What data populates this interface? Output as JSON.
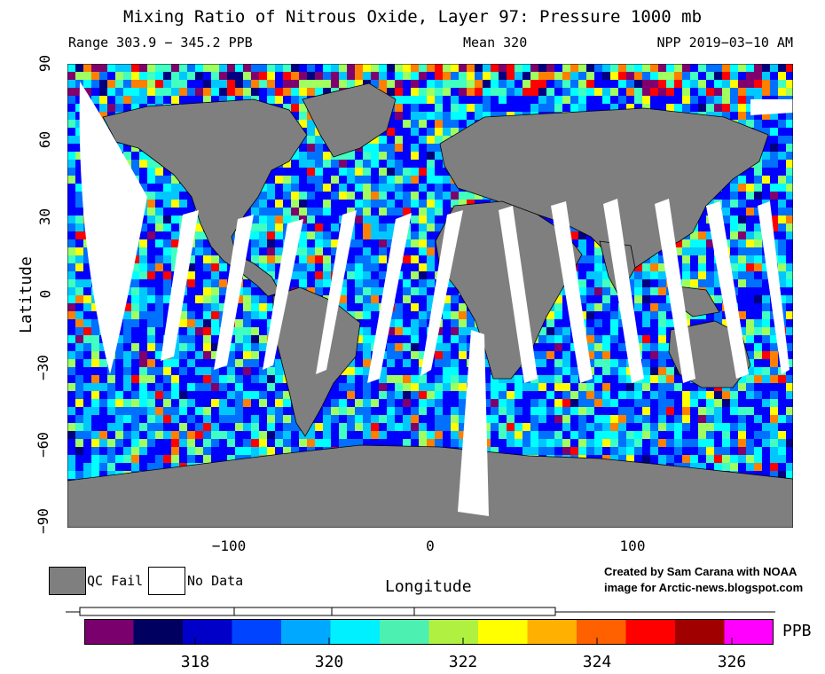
{
  "header": {
    "title": "Mixing Ratio of Nitrous Oxide, Layer 97: Pressure 1000 mb",
    "range": "Range 303.9 − 345.2 PPB",
    "mean": "Mean 320",
    "source": "NPP 2019−03−10 AM"
  },
  "axes": {
    "y_label": "Latitude",
    "x_label": "Longitude",
    "y_ticks": [
      "90",
      "60",
      "30",
      "0",
      "−30",
      "−60",
      "−90"
    ],
    "x_ticks": [
      "−100",
      "0",
      "100"
    ]
  },
  "legend": {
    "qc_fail": {
      "label": "QC Fail",
      "color": "#7f7f7f"
    },
    "no_data": {
      "label": "No Data",
      "color": "#ffffff"
    }
  },
  "credit": {
    "line1": "Created by Sam Carana with NOAA",
    "line2": "image for Arctic-news.blogspot.com"
  },
  "colorbar": {
    "unit": "PPB",
    "ticks": [
      "318",
      "320",
      "322",
      "324",
      "326"
    ],
    "colors": [
      "#7a006e",
      "#000060",
      "#0000c8",
      "#0044ff",
      "#00a8ff",
      "#00f0ff",
      "#4cf0b0",
      "#b0f040",
      "#ffff00",
      "#ffb000",
      "#ff6000",
      "#ff0000",
      "#a00000",
      "#ff00ff"
    ]
  },
  "map": {
    "lon_range": [
      -180,
      180
    ],
    "lat_range": [
      -90,
      90
    ],
    "land_color": "#7f7f7f",
    "ocean_colors": [
      "#0000ff",
      "#0070ff",
      "#00c8ff",
      "#00ffff",
      "#40ffc0",
      "#a0ff60",
      "#ffff00",
      "#ff8000",
      "#ff0000",
      "#80006e",
      "#000080"
    ]
  }
}
